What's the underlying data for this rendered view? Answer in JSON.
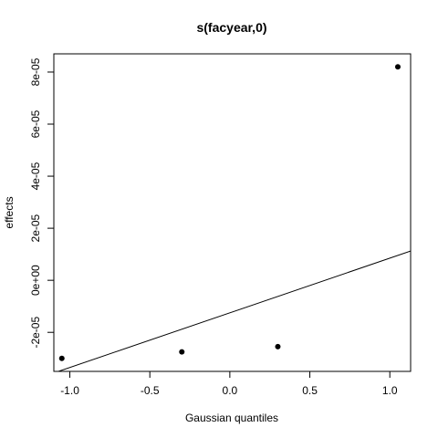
{
  "chart_data": {
    "type": "scatter",
    "title": "s(facyear,0)",
    "xlabel": "Gaussian quantiles",
    "ylabel": "effects",
    "xlim": [
      -1.1,
      1.13
    ],
    "ylim": [
      -3.5e-05,
      8.7e-05
    ],
    "x_ticks": [
      -1.0,
      -0.5,
      0.0,
      0.5,
      1.0
    ],
    "x_tick_labels": [
      "-1.0",
      "-0.5",
      "0.0",
      "0.5",
      "1.0"
    ],
    "y_ticks": [
      -2e-05,
      0,
      2e-05,
      4e-05,
      6e-05,
      8e-05
    ],
    "y_tick_labels": [
      "-2e-05",
      "0e+00",
      "2e-05",
      "4e-05",
      "6e-05",
      "8e-05"
    ],
    "points": [
      {
        "x": -1.05,
        "y": -3e-05
      },
      {
        "x": -0.3,
        "y": -2.75e-05
      },
      {
        "x": 0.3,
        "y": -2.55e-05
      },
      {
        "x": 1.05,
        "y": 8.2e-05
      }
    ],
    "reference_line": {
      "intercept": -1.25e-05,
      "slope": 2.1e-05
    },
    "grid": false,
    "legend": "none"
  }
}
